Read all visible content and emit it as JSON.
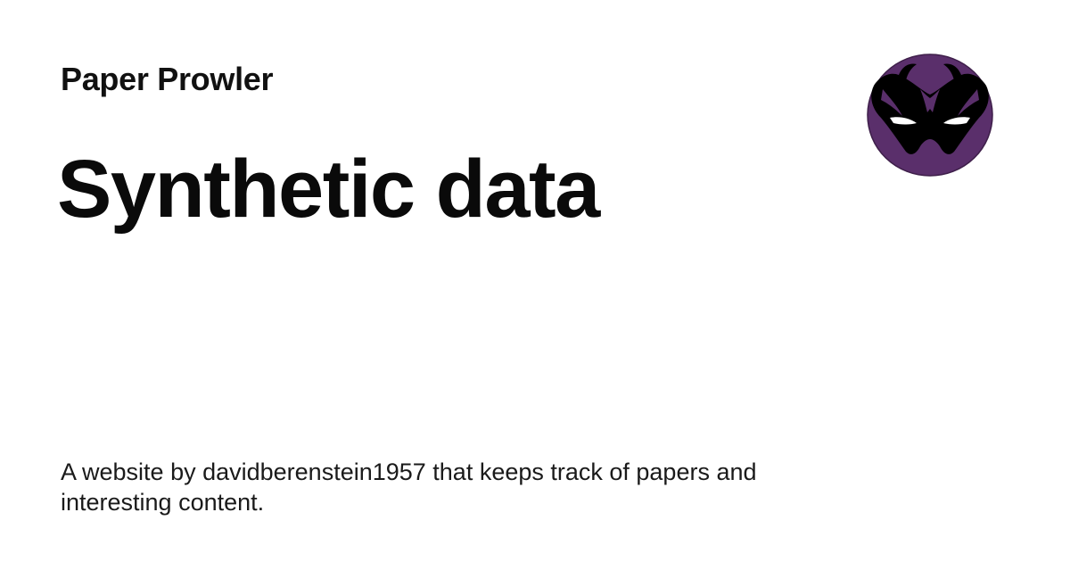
{
  "site": {
    "name": "Paper Prowler"
  },
  "page": {
    "title": "Synthetic data",
    "description": "A website by davidberenstein1957 that keeps track of papers and interesting content."
  },
  "logo": {
    "icon": "masked-face-icon",
    "background_color": "#5a2f6b",
    "mask_color": "#000000",
    "eye_color": "#ffffff"
  }
}
